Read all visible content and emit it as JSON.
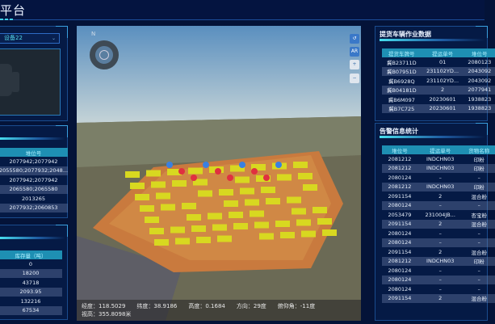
{
  "header": {
    "title": "平台"
  },
  "device": {
    "selected": "设备22"
  },
  "location_table": {
    "header": "堆位号",
    "rows": [
      "2077942;2077942",
      "2055580;2077932;2048...",
      "2077942;2077942",
      "2065580;2065580",
      "2013265",
      "2077932;2060853"
    ]
  },
  "stock_table": {
    "header": "库存量（吨）",
    "rows": [
      "0",
      "18200",
      "43718",
      "2093.95",
      "132216",
      "67534"
    ]
  },
  "vehicle_panel": {
    "title": "提货车辆作业数据",
    "columns": [
      "提货车牌号",
      "提运单号",
      "堆位号"
    ],
    "rows": [
      [
        "冀B23711D",
        "01",
        "2080123"
      ],
      [
        "冀B07951D",
        "231102YD...",
        "2043092"
      ],
      [
        "冀B6928Q",
        "231102YD...",
        "2043092"
      ],
      [
        "冀B04181D",
        "2",
        "2077941"
      ],
      [
        "冀B6M097",
        "20230601",
        "1938823"
      ],
      [
        "冀B7C725",
        "20230601",
        "1938823"
      ]
    ]
  },
  "alarm_panel": {
    "title": "告警信息统计",
    "columns": [
      "堆位号",
      "提运单号",
      "货物名称"
    ],
    "rows": [
      [
        "2081212",
        "INDCHN03",
        "印粉"
      ],
      [
        "2081212",
        "INDCHN03",
        "印粉"
      ],
      [
        "2080124",
        "–",
        "–"
      ],
      [
        "2081212",
        "INDCHN03",
        "印粉"
      ],
      [
        "2091154",
        "2",
        "混合粉"
      ],
      [
        "2080124",
        "–",
        "–"
      ],
      [
        "2053479",
        "231004JB...",
        "杏宝粉"
      ],
      [
        "2091154",
        "2",
        "混合粉"
      ],
      [
        "2080124",
        "–",
        "–"
      ],
      [
        "2080124",
        "–",
        "–"
      ],
      [
        "2091154",
        "2",
        "混合粉"
      ],
      [
        "2081212",
        "INDCHN03",
        "印粉"
      ],
      [
        "2080124",
        "–",
        "–"
      ],
      [
        "2080124",
        "–",
        "–"
      ],
      [
        "2080124",
        "–",
        "–"
      ],
      [
        "2091154",
        "2",
        "混合粉"
      ]
    ]
  },
  "map": {
    "compass_label": "N",
    "tools": {
      "reset": "↺",
      "ar": "AR",
      "zoom_in": "+",
      "zoom_out": "−"
    },
    "status": {
      "lon": "经度：118.5029",
      "lat": "纬度：38.9186",
      "alt": "高度：0.1684",
      "heading": "方向：29度",
      "pitch": "俯仰角：-11度",
      "view_height": "视高：355.8098米"
    }
  },
  "colors": {
    "accent": "#1e8fb3",
    "background": "#041338",
    "pile": "#d8d820"
  }
}
